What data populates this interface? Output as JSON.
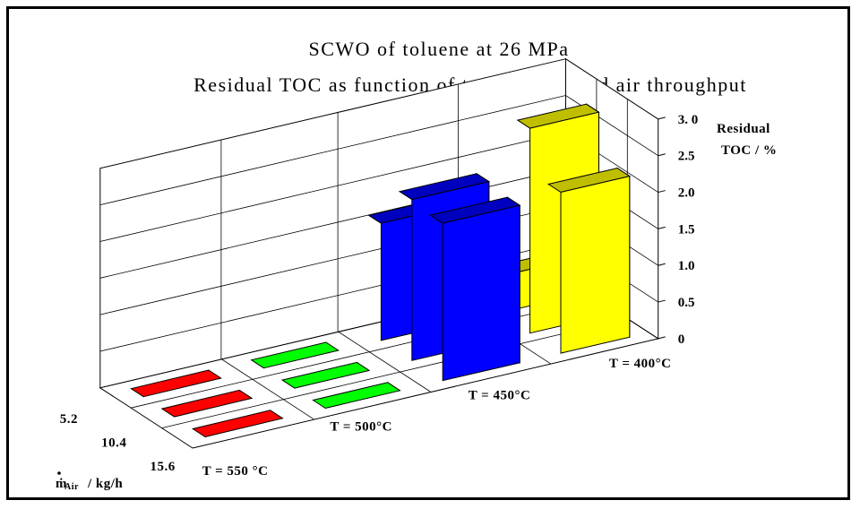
{
  "chart_data": {
    "type": "bar3d",
    "title": "SCWO of toluene at 26 MPa",
    "subtitle": "Residual TOC as function of temperature and air throughput",
    "zlabel_line1": "Residual",
    "zlabel_line2": "TOC / %",
    "zlim": [
      0,
      3.0
    ],
    "z_ticks": [
      "0",
      "0.5",
      "1.0",
      "1.5",
      "2.0",
      "2.5",
      "3. 0"
    ],
    "temperature_categories": [
      "T = 550 °C",
      "T = 500°C",
      "T = 450°C",
      "T = 400°C"
    ],
    "air_categories": [
      "5.2",
      "10.4",
      "15.6"
    ],
    "air_axis_label": "ṁ",
    "air_axis_label_sub": "Air",
    "air_axis_label_unit": "/ kg/h",
    "series": [
      {
        "temperature": "T = 550 °C",
        "color": "#ff0000",
        "values": [
          0,
          0,
          0
        ]
      },
      {
        "temperature": "T = 500°C",
        "color": "#00ff00",
        "values": [
          0,
          0,
          0
        ]
      },
      {
        "temperature": "T = 450°C",
        "color": "#0000ff",
        "values": [
          1.6,
          2.2,
          2.15
        ]
      },
      {
        "temperature": "T = 400°C",
        "color": "#ffff00",
        "values": [
          0.5,
          2.8,
          2.2
        ]
      }
    ],
    "grid": true
  }
}
